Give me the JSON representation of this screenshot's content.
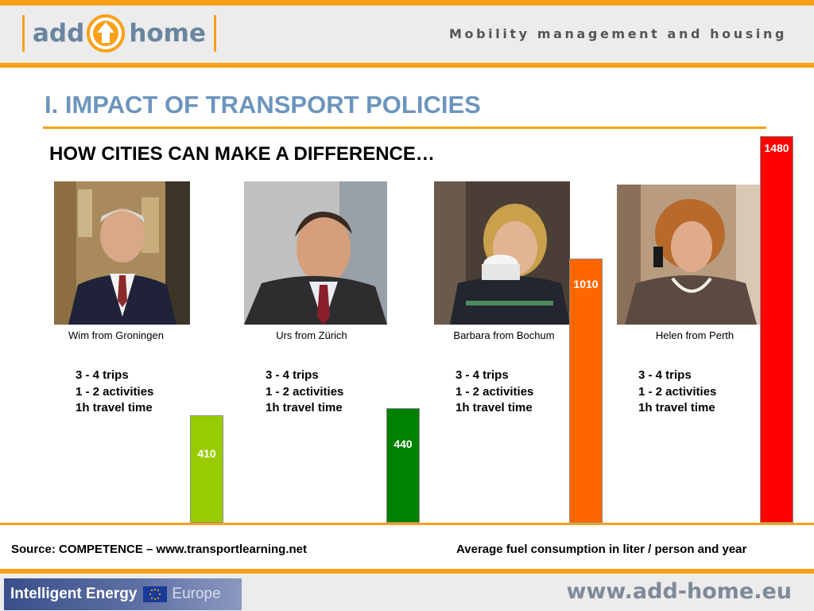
{
  "header": {
    "logo": {
      "left_word": "add",
      "right_word": "home"
    },
    "tagline": "Mobility management and housing"
  },
  "slide": {
    "title": "I. IMPACT OF TRANSPORT POLICIES",
    "subtitle": "HOW CITIES CAN MAKE A DIFFERENCE…"
  },
  "people": [
    {
      "caption": "Wim from Groningen",
      "trips": "3 - 4 trips",
      "activities": "1 - 2 activities",
      "travel": "1h travel time"
    },
    {
      "caption": "Urs from Zürich",
      "trips": "3 - 4 trips",
      "activities": "1 - 2 activities",
      "travel": "1h travel time"
    },
    {
      "caption": "Barbara from Bochum",
      "trips": "3 - 4 trips",
      "activities": "1 - 2 activities",
      "travel": "1h travel time"
    },
    {
      "caption": "Helen from Perth",
      "trips": "3 - 4 trips",
      "activities": "1 - 2 activities",
      "travel": "1h travel time"
    }
  ],
  "chart_data": {
    "type": "bar",
    "categories": [
      "Wim from Groningen",
      "Urs from Zürich",
      "Barbara from Bochum",
      "Helen from Perth"
    ],
    "values": [
      410,
      440,
      1010,
      1480
    ],
    "value_labels": [
      "410",
      "440",
      "1010",
      "1480"
    ],
    "colors": [
      "#99cc00",
      "#008000",
      "#ff6600",
      "#ff0000"
    ],
    "title": "",
    "xlabel": "",
    "ylabel": "",
    "ylim": [
      0,
      1480
    ],
    "grid": false,
    "legend": "none"
  },
  "footer": {
    "source": "Source: COMPETENCE – www.transportlearning.net",
    "note": "Average fuel consumption in liter / person and year",
    "sponsor_main": "Intelligent Energy",
    "sponsor_sub": "Europe",
    "url": "www.add-home.eu"
  },
  "colors": {
    "accent": "#f7a11a",
    "title": "#6c95bd",
    "header_bg": "#ececec"
  }
}
